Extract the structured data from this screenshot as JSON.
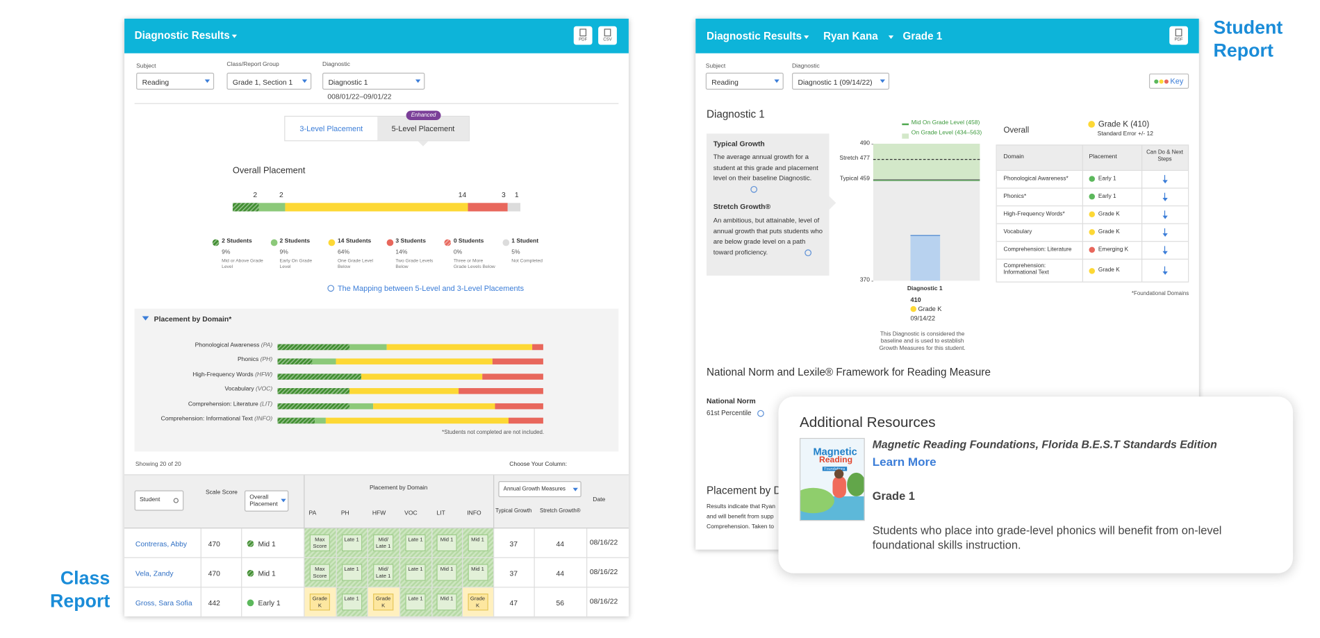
{
  "class_report": {
    "label": "Class Report",
    "header": {
      "title": "Diagnostic Results",
      "icons": [
        "PDF",
        "CSV"
      ]
    },
    "filters": [
      {
        "label": "Subject",
        "value": "Reading"
      },
      {
        "label": "Class/Report Group",
        "value": "Grade 1, Section 1"
      },
      {
        "label": "Diagnostic",
        "value": "Diagnostic 1"
      }
    ],
    "date_range": "008/01/22–09/01/22",
    "tabs": [
      "3-Level Placement",
      "5-Level Placement"
    ],
    "badge": "Enhanced",
    "overall": {
      "title": "Overall Placement",
      "segments": [
        {
          "count": 2,
          "label": "2 Students",
          "percent": "9%",
          "description": "Mid or Above Grade Level",
          "color": "#3f8d2f",
          "pattern": "hatched"
        },
        {
          "count": 2,
          "label": "2 Students",
          "percent": "9%",
          "description": "Early On Grade Level",
          "color": "#8cc97a"
        },
        {
          "count": 14,
          "label": "14 Students",
          "percent": "64%",
          "description": "One Grade Level Below",
          "color": "#fdd835"
        },
        {
          "count": 3,
          "label": "3 Students",
          "percent": "14%",
          "description": "Two Grade Levels Below",
          "color": "#e8675c"
        },
        {
          "count": 0,
          "label": "0 Students",
          "percent": "0%",
          "description": "Three or More Grade Levels Below",
          "color": "#e8675c",
          "pattern": "hatched"
        },
        {
          "count": 1,
          "label": "1 Student",
          "percent": "5%",
          "description": "Not Completed",
          "color": "#dcdcdc"
        }
      ],
      "link": "The Mapping between 5-Level and 3-Level Placements"
    },
    "domains": {
      "title": "Placement by Domain*",
      "rows": [
        {
          "name": "Phonological Awareness",
          "abbr": "(PA)",
          "values": [
            27,
            14,
            55,
            4
          ]
        },
        {
          "name": "Phonics",
          "abbr": "(PH)",
          "values": [
            13,
            9,
            59,
            19
          ]
        },
        {
          "name": "High-Frequency Words",
          "abbr": "(HFW)",
          "values": [
            32,
            0,
            46,
            23
          ]
        },
        {
          "name": "Vocabulary",
          "abbr": "(VOC)",
          "values": [
            27,
            0,
            41,
            32
          ]
        },
        {
          "name": "Comprehension: Literature",
          "abbr": "(LIT)",
          "values": [
            27,
            9,
            46,
            18
          ]
        },
        {
          "name": "Comprehension: Informational Text",
          "abbr": "(INFO)",
          "values": [
            14,
            4,
            68,
            13
          ]
        }
      ],
      "footnote": "*Students not completed are not included."
    },
    "table": {
      "showing": "Showing 20 of 20",
      "choose": "Choose Your Column:",
      "columns": {
        "student": "Student",
        "score": "Scale Score",
        "overall": "Overall Placement",
        "domain_group": "Placement by Domain",
        "domains": [
          "PA",
          "PH",
          "HFW",
          "VOC",
          "LIT",
          "INFO"
        ],
        "growth_select": "Annual Growth Measures",
        "typical": "Typical Growth",
        "stretch": "Stretch Growth®",
        "date": "Date"
      },
      "rows": [
        {
          "name": "Contreras, Abby",
          "score": 470,
          "placement": "Mid 1",
          "color": "#3f8d2f",
          "domains": [
            "Max Score",
            "Late 1",
            "Mid/ Late 1",
            "Late 1",
            "Mid 1",
            "Mid 1"
          ],
          "typical": 37,
          "stretch": 44,
          "date": "08/16/22"
        },
        {
          "name": "Vela, Zandy",
          "score": 470,
          "placement": "Mid 1",
          "color": "#3f8d2f",
          "domains": [
            "Max Score",
            "Late 1",
            "Mid/ Late 1",
            "Late 1",
            "Mid 1",
            "Mid 1"
          ],
          "typical": 37,
          "stretch": 44,
          "date": "08/16/22"
        },
        {
          "name": "Gross, Sara Sofia",
          "score": 442,
          "placement": "Early 1",
          "color": "#5cb85c",
          "domains": [
            "Grade K",
            "Late 1",
            "Grade K",
            "Late 1",
            "Mid 1",
            "Grade K"
          ],
          "typical": 47,
          "stretch": 56,
          "date": "08/16/22"
        }
      ]
    }
  },
  "student_report": {
    "label": "Student Report",
    "header": {
      "items": [
        "Diagnostic Results",
        "Ryan Kana",
        "Grade 1"
      ],
      "icon": "PDF"
    },
    "filters": [
      {
        "label": "Subject",
        "value": "Reading"
      },
      {
        "label": "Diagnostic",
        "value": "Diagnostic 1 (09/14/22)"
      }
    ],
    "key": "Key",
    "heading": "Diagnostic 1",
    "info": [
      {
        "title": "Typical Growth",
        "text": "The average annual growth for a student at this grade and placement level on their baseline Diagnostic."
      },
      {
        "title": "Stretch Growth®",
        "text": "An ambitious, but attainable, level of annual growth that puts students who are below grade level on a path toward proficiency."
      }
    ],
    "chart": {
      "legend": [
        "Mid On Grade Level (458)",
        "On Grade Level (434–563)"
      ],
      "mid": 458,
      "ylim": [
        370,
        490
      ],
      "yticks": [
        370,
        490
      ],
      "lines": [
        {
          "label": "Stretch 477",
          "value": 477
        },
        {
          "label": "Typical 459",
          "value": 459
        }
      ],
      "bar": {
        "name": "Diagnostic 1",
        "value": 410,
        "placement": "Grade K",
        "date": "09/14/22"
      },
      "note": "This Diagnostic is considered the baseline and is used to establish Growth Measures for this student."
    },
    "overall": {
      "title": "Overall",
      "placement": "Grade K (410)",
      "error": "Standard Error +/- 12"
    },
    "domain_table": {
      "columns": [
        "Domain",
        "Placement",
        "Can Do & Next Steps"
      ],
      "rows": [
        {
          "domain": "Phonological Awareness*",
          "placement": "Early 1",
          "color": "#5cb85c"
        },
        {
          "domain": "Phonics*",
          "placement": "Early 1",
          "color": "#5cb85c"
        },
        {
          "domain": "High-Frequency Words*",
          "placement": "Grade K",
          "color": "#fdd835"
        },
        {
          "domain": "Vocabulary",
          "placement": "Grade K",
          "color": "#fdd835"
        },
        {
          "domain": "Comprehension: Literature",
          "placement": "Emerging K",
          "color": "#e8675c"
        },
        {
          "domain": "Comprehension: Informational Text",
          "placement": "Grade K",
          "color": "#fdd835"
        }
      ],
      "footnote": "*Foundational Domains"
    },
    "norm": {
      "heading": "National Norm and Lexile® Framework for Reading Measure",
      "label": "National Norm",
      "value": "61st Percentile"
    },
    "placement": {
      "heading": "Placement by D",
      "lines": [
        "Results indicate that Ryan",
        "and will benefit from supp",
        "Comprehension. Taken to"
      ]
    }
  },
  "resources": {
    "title": "Additional Resources",
    "cover": [
      "Magnetic",
      "Reading",
      "Foundations"
    ],
    "book": "Magnetic Reading Foundations, Florida B.E.S.T Standards Edition",
    "link": "Learn More",
    "grade": "Grade 1",
    "text": "Students who place into grade-level phonics will benefit from on-level foundational skills instruction."
  }
}
